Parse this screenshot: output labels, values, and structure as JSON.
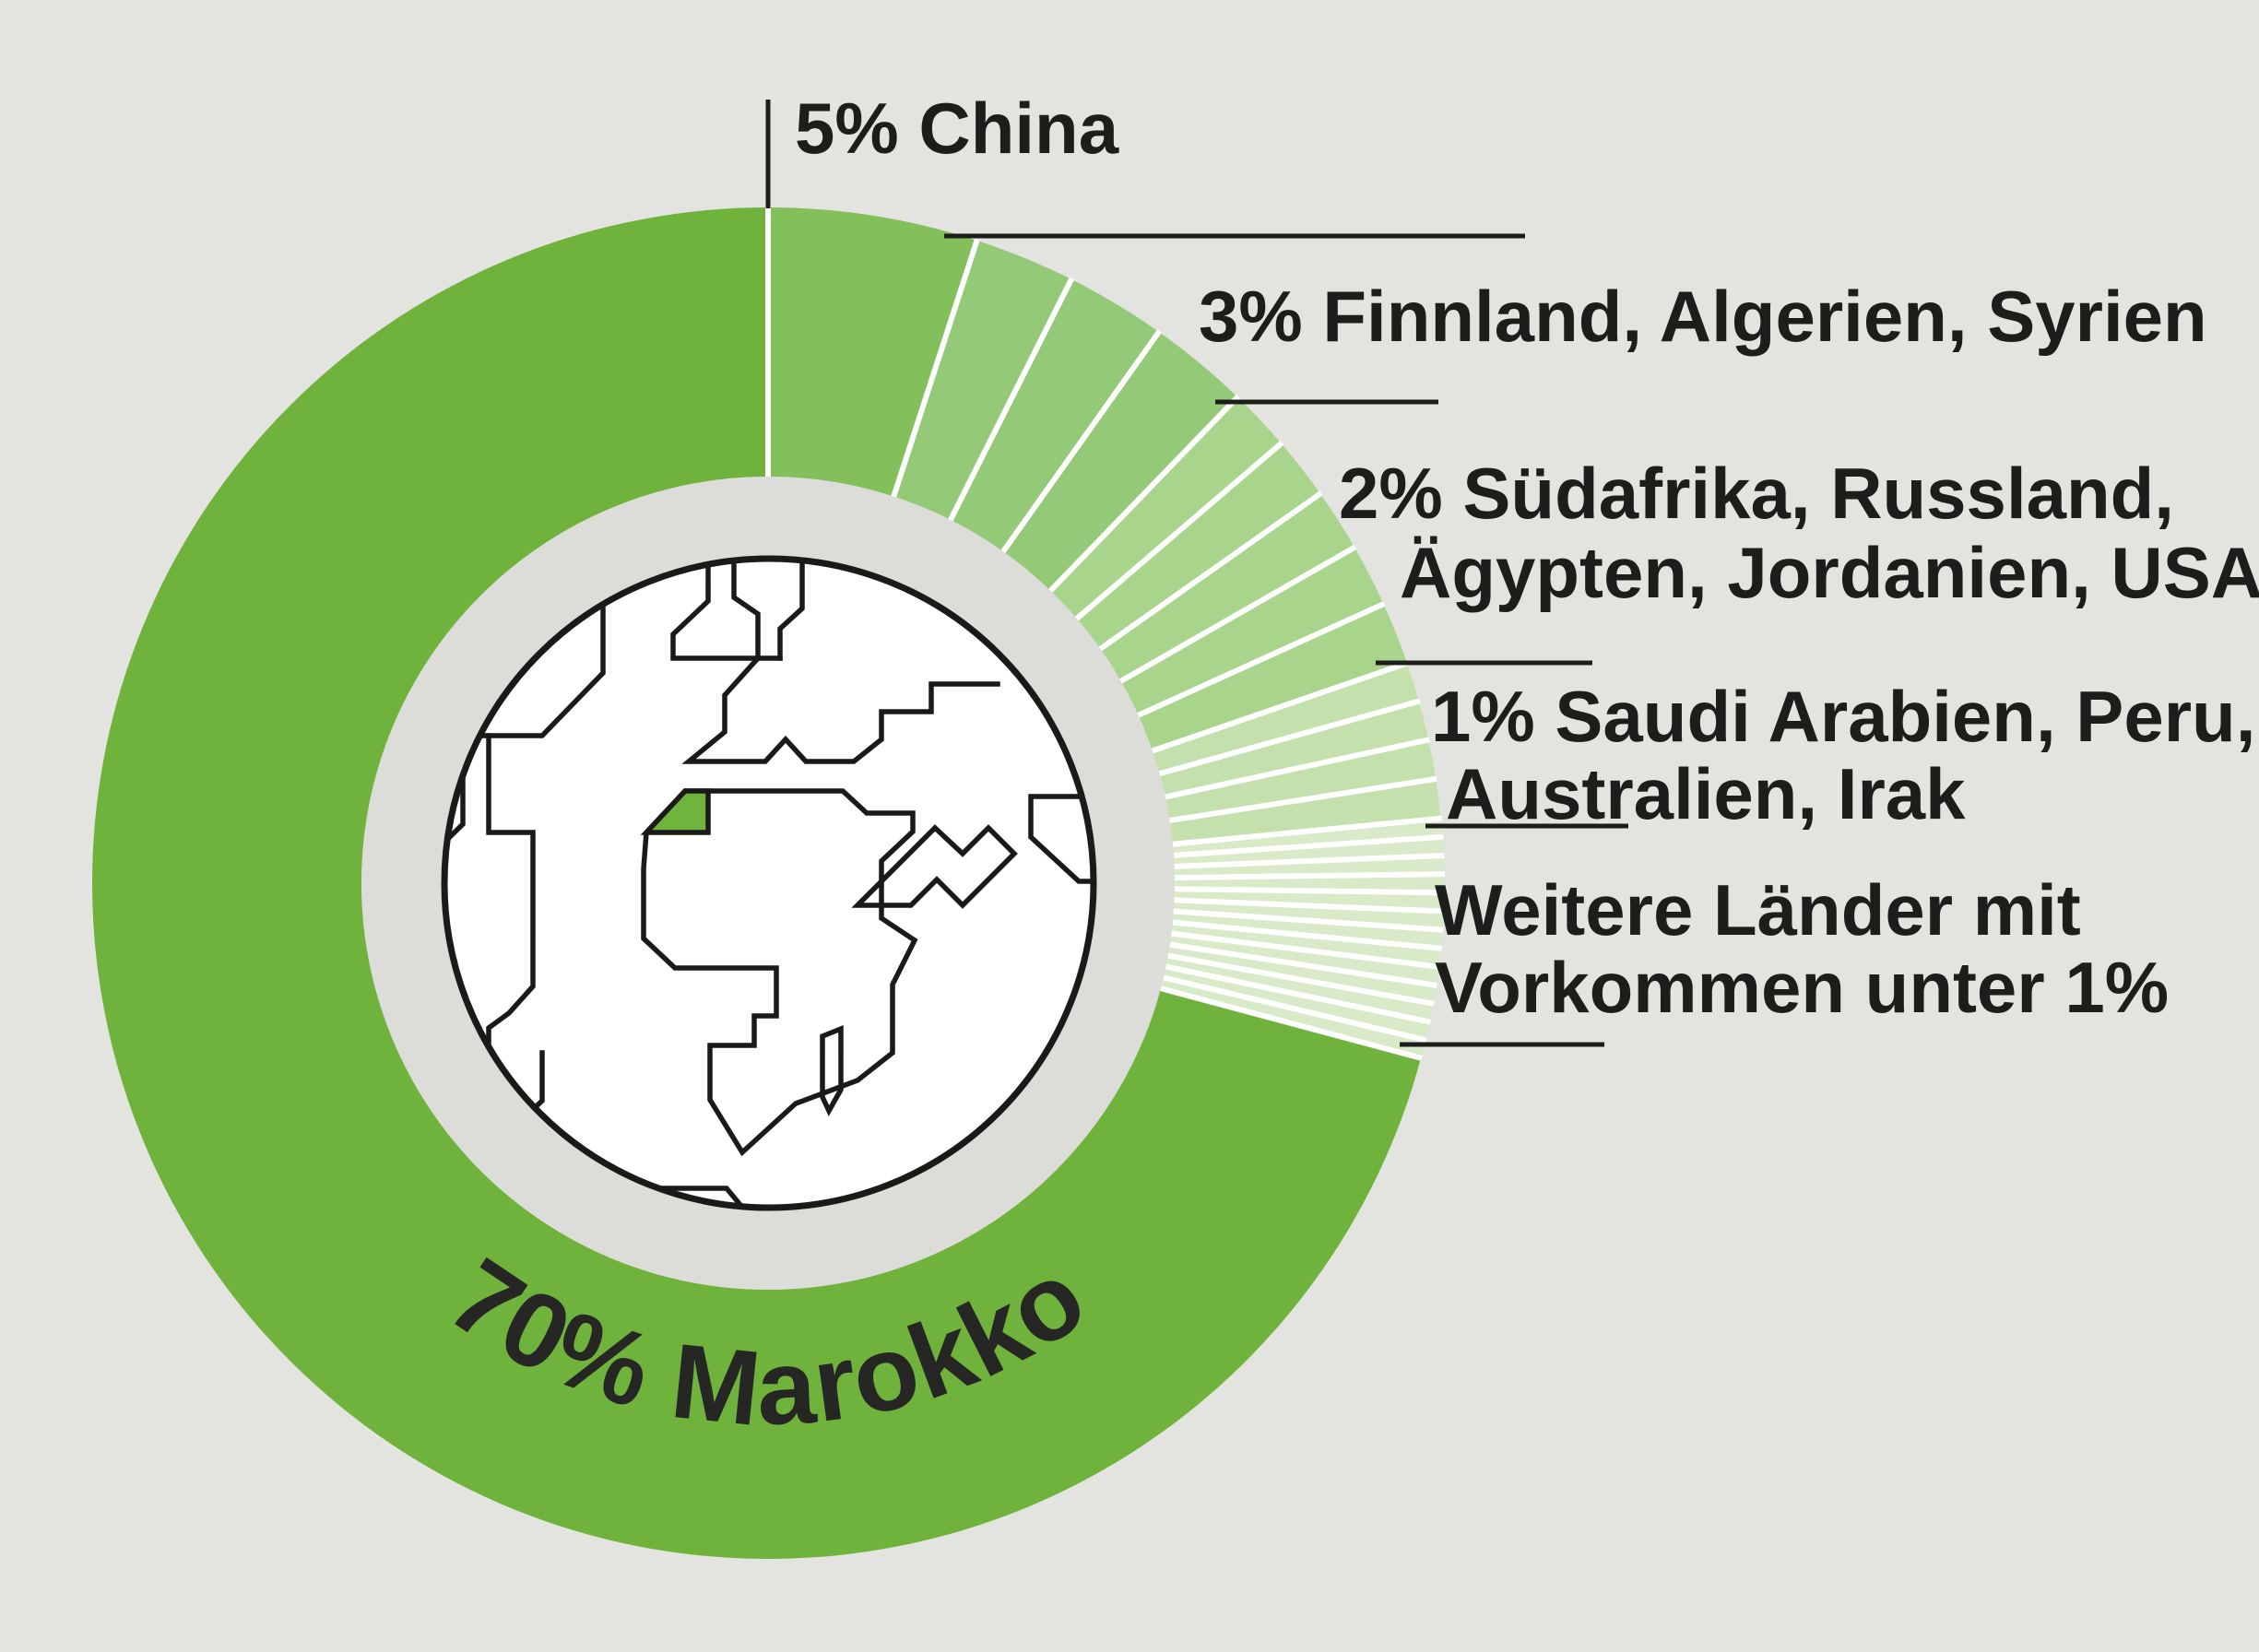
{
  "colors": {
    "background": "#e3e3df",
    "inner_ring_grey": "#dcdcd8",
    "marokko_green": "#70b33c",
    "china_green": "#83bf5b",
    "three_pct_green": "#93c977",
    "two_pct_green": "#a8d48c",
    "one_pct_green": "#c4e1ad",
    "under_one_pct_green": "#d9eac9",
    "divider_white": "#ffffff",
    "text_dark": "#1d1d1b",
    "globe_fill": "#ffffff",
    "globe_outline": "#1a1a18",
    "morocco_patch_green": "#6fb43c"
  },
  "chart_data": {
    "type": "pie",
    "subtype": "donut",
    "unit": "%",
    "start_angle_deg": 0,
    "direction": "clockwise",
    "inner_radius_ratio": 0.6,
    "legend_position": "none",
    "title": "",
    "series": [
      {
        "label": "Marokko",
        "value": 70
      },
      {
        "label": "China",
        "value": 5
      },
      {
        "label": "Finnland",
        "value": 3
      },
      {
        "label": "Algerien",
        "value": 3
      },
      {
        "label": "Syrien",
        "value": 3
      },
      {
        "label": "Südafrika",
        "value": 2
      },
      {
        "label": "Russland",
        "value": 2
      },
      {
        "label": "Ägypten",
        "value": 2
      },
      {
        "label": "Jordanien",
        "value": 2
      },
      {
        "label": "USA",
        "value": 2
      },
      {
        "label": "Saudi Arabien",
        "value": 1
      },
      {
        "label": "Peru",
        "value": 1
      },
      {
        "label": "Australien",
        "value": 1
      },
      {
        "label": "Irak",
        "value": 1
      },
      {
        "label": "Weitere Länder mit Vorkommen unter 1%",
        "value": 2,
        "slice_count": 13
      }
    ]
  },
  "callouts": {
    "china": {
      "label": "5% China"
    },
    "three_pct": {
      "label": "3% Finnland, Algerien, Syrien"
    },
    "two_pct": {
      "line1": "2% Südafrika, Russland,",
      "line2": "Ägypten, Jordanien, USA"
    },
    "one_pct": {
      "line1": "1% Saudi Arabien, Peru,",
      "line2": "Australien, Irak"
    },
    "others": {
      "line1": "Weitere Länder mit",
      "line2": "Vorkommen unter 1%"
    },
    "marokko": {
      "label": "70% Marokko"
    }
  },
  "globe": {
    "description": "stylized line-art globe showing Europe and Africa",
    "highlight_country": "Marokko"
  }
}
